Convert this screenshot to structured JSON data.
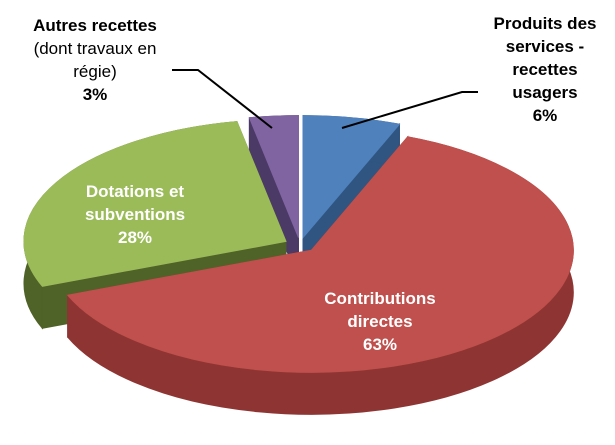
{
  "chart_data": {
    "type": "pie3d",
    "categories": [
      "Produits des services - recettes usagers",
      "Contributions directes",
      "Dotations et subventions",
      "Autres recettes"
    ],
    "annotation": "(dont travaux en régie)",
    "values": [
      6,
      63,
      28,
      3
    ],
    "value_labels": [
      "6%",
      "63%",
      "28%",
      "3%"
    ],
    "colors": [
      "#4f81bd",
      "#c0504d",
      "#9bbb59",
      "#8064a2"
    ],
    "side_colors": [
      "#2f5580",
      "#8e3533",
      "#4f6228",
      "#4b3a66"
    ]
  }
}
